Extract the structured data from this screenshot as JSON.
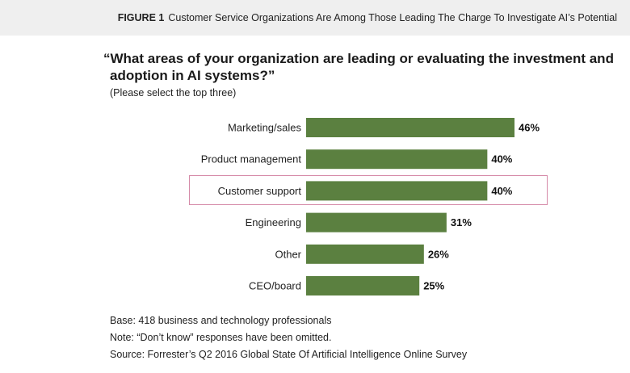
{
  "figure": {
    "label": "FIGURE 1",
    "title": "Customer Service Organizations Are Among Those Leading The Charge To Investigate AI’s Potential"
  },
  "question": {
    "line1": "“What areas of your organization are leading or evaluating the investment and",
    "line2": "adoption in AI systems?”",
    "instruction": "(Please select the top three)"
  },
  "chart_data": {
    "type": "bar",
    "orientation": "horizontal",
    "title": "What areas of your organization are leading or evaluating the investment and adoption in AI systems?",
    "categories": [
      "Marketing/sales",
      "Product management",
      "Customer support",
      "Engineering",
      "Other",
      "CEO/board"
    ],
    "values": [
      46,
      40,
      40,
      31,
      26,
      25
    ],
    "value_labels": [
      "46%",
      "40%",
      "40%",
      "31%",
      "26%",
      "25%"
    ],
    "unit": "%",
    "highlighted_category": "Customer support",
    "bar_color": "#5b8040",
    "highlight_color": "#d58aa8",
    "xlim": [
      0,
      100
    ],
    "grid": false
  },
  "notes": {
    "base": "Base: 418 business and technology professionals",
    "note": "Note: “Don’t know” responses have been omitted.",
    "source": "Source: Forrester’s Q2 2016 Global State Of Artificial Intelligence Online Survey"
  }
}
